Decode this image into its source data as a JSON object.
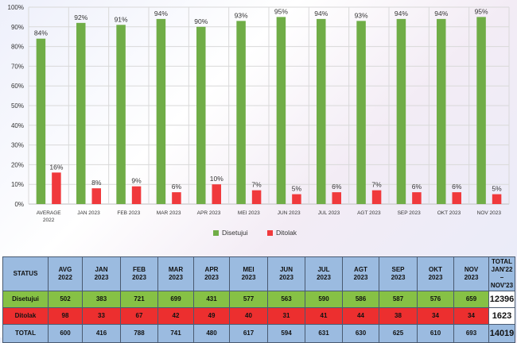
{
  "chart_data": {
    "type": "bar",
    "title": "",
    "xlabel": "",
    "ylabel": "",
    "ylim": [
      0,
      100
    ],
    "yticks": [
      "0%",
      "10%",
      "20%",
      "30%",
      "40%",
      "50%",
      "60%",
      "70%",
      "80%",
      "90%",
      "100%"
    ],
    "categories": [
      "AVERAGE\n2022",
      "JAN 2023",
      "FEB 2023",
      "MAR 2023",
      "APR 2023",
      "MEI 2023",
      "JUN 2023",
      "JUL 2023",
      "AGT 2023",
      "SEP 2023",
      "OKT 2023",
      "NOV 2023"
    ],
    "series": [
      {
        "name": "Disetujui",
        "color": "#70ad47",
        "values": [
          84,
          92,
          91,
          94,
          90,
          93,
          95,
          94,
          93,
          94,
          94,
          95
        ],
        "labels": [
          "84%",
          "92%",
          "91%",
          "94%",
          "90%",
          "93%",
          "95%",
          "94%",
          "93%",
          "94%",
          "94%",
          "95%"
        ]
      },
      {
        "name": "Ditolak",
        "color": "#f0393c",
        "values": [
          16,
          8,
          9,
          6,
          10,
          7,
          5,
          6,
          7,
          6,
          6,
          5
        ],
        "labels": [
          "16%",
          "8%",
          "9%",
          "6%",
          "10%",
          "7%",
          "5%",
          "6%",
          "7%",
          "6%",
          "6%",
          "5%"
        ]
      }
    ],
    "legend_position": "bottom-center",
    "grid": true
  },
  "table": {
    "status_header": "STATUS",
    "headers": [
      "AVG\n2022",
      "JAN\n2023",
      "FEB\n2023",
      "MAR\n2023",
      "APR\n2023",
      "MEI\n2023",
      "JUN\n2023",
      "JUL\n2023",
      "AGT\n2023",
      "SEP\n2023",
      "OKT\n2023",
      "NOV\n2023"
    ],
    "total_header": "TOTAL\nJAN'22 –\nNOV'23",
    "rows": [
      {
        "label": "Disetujui",
        "cells": [
          "502",
          "383",
          "721",
          "699",
          "431",
          "577",
          "563",
          "590",
          "586",
          "587",
          "576",
          "659"
        ],
        "total": "12396"
      },
      {
        "label": "Ditolak",
        "cells": [
          "98",
          "33",
          "67",
          "42",
          "49",
          "40",
          "31",
          "41",
          "44",
          "38",
          "34",
          "34"
        ],
        "total": "1623"
      },
      {
        "label": "TOTAL",
        "cells": [
          "600",
          "416",
          "788",
          "741",
          "480",
          "617",
          "594",
          "631",
          "630",
          "625",
          "610",
          "693"
        ],
        "total": "14019"
      }
    ]
  }
}
